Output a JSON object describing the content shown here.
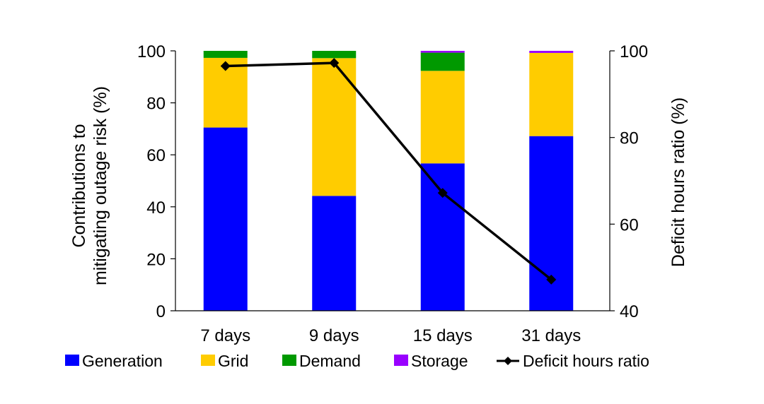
{
  "chart_data": {
    "type": "bar",
    "stacked": true,
    "categories": [
      "7 days",
      "9 days",
      "15 days",
      "31 days"
    ],
    "series": [
      {
        "name": "Generation",
        "color": "#0000ff",
        "values": [
          70.5,
          44.2,
          56.7,
          67.2
        ]
      },
      {
        "name": "Grid",
        "color": "#ffcc00",
        "values": [
          26.8,
          53.0,
          35.6,
          32.0
        ]
      },
      {
        "name": "Demand",
        "color": "#009900",
        "values": [
          2.7,
          2.8,
          7.0,
          0.0
        ]
      },
      {
        "name": "Storage",
        "color": "#9900ff",
        "values": [
          0.0,
          0.0,
          0.7,
          0.8
        ]
      }
    ],
    "line_series": {
      "name": "Deficit hours ratio",
      "axis": "right",
      "color": "#000000",
      "marker": "diamond",
      "values": [
        96.5,
        97.2,
        67.2,
        47.2
      ]
    },
    "ylabel_lines": [
      "Contributions to",
      "mitigating outage risk (%)"
    ],
    "y2label": "Deficit hours ratio (%)",
    "ylim": [
      0,
      100
    ],
    "y2lim": [
      40,
      100
    ],
    "yticks": [
      "0",
      "20",
      "40",
      "60",
      "80",
      "100"
    ],
    "y2ticks": [
      "40",
      "60",
      "80",
      "100"
    ],
    "legend_position": "bottom",
    "grid": false
  }
}
